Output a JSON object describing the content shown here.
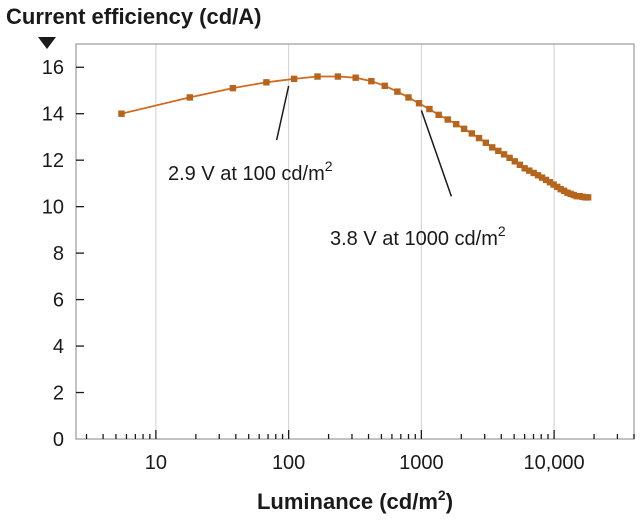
{
  "chart_data": {
    "type": "line",
    "ylabel": "Current efficiency (cd/A)",
    "xlabel_main": "Luminance (cd/m",
    "xlabel_sup": "2",
    "xlabel_end": ")",
    "x_scale": "log",
    "xlim": [
      2.5,
      40000
    ],
    "ylim": [
      0,
      17
    ],
    "grid": "vertical",
    "line_color": "#d2691e",
    "marker_color": "#b5651d",
    "y_ticks": [
      "0",
      "2",
      "4",
      "6",
      "8",
      "10",
      "12",
      "14",
      "16"
    ],
    "y_tick_values": [
      0,
      2,
      4,
      6,
      8,
      10,
      12,
      14,
      16
    ],
    "x_ticks": [
      "10",
      "100",
      "1000",
      "10,000"
    ],
    "x_tick_values": [
      10,
      100,
      1000,
      10000
    ],
    "series": [
      {
        "x": [
          5.5,
          18,
          38,
          68,
          110,
          165,
          235,
          320,
          420,
          530,
          660,
          800,
          960,
          1150,
          1350,
          1580,
          1830,
          2100,
          2400,
          2720,
          3060,
          3420,
          3800,
          4200,
          4620,
          5060,
          5520,
          6000,
          6500,
          7020,
          7560,
          8120,
          8700,
          9300,
          9920,
          10560,
          11220,
          11900,
          12600,
          13320,
          14060,
          14820,
          15600,
          16400,
          17220,
          18060
        ],
        "y": [
          14.0,
          14.7,
          15.1,
          15.35,
          15.5,
          15.6,
          15.6,
          15.55,
          15.4,
          15.2,
          14.95,
          14.7,
          14.45,
          14.2,
          13.95,
          13.75,
          13.55,
          13.35,
          13.15,
          12.95,
          12.75,
          12.55,
          12.4,
          12.25,
          12.1,
          11.95,
          11.8,
          11.65,
          11.55,
          11.45,
          11.35,
          11.25,
          11.15,
          11.05,
          10.95,
          10.85,
          10.75,
          10.68,
          10.6,
          10.55,
          10.5,
          10.45,
          10.45,
          10.42,
          10.4,
          10.4
        ]
      }
    ],
    "annotations": [
      {
        "text_main": "2.9 V at 100 cd/m",
        "text_sup": "2",
        "x": 100,
        "y": 15.45
      },
      {
        "text_main": "3.8 V at 1000 cd/m",
        "text_sup": "2",
        "x": 1000,
        "y": 14.4
      }
    ]
  }
}
